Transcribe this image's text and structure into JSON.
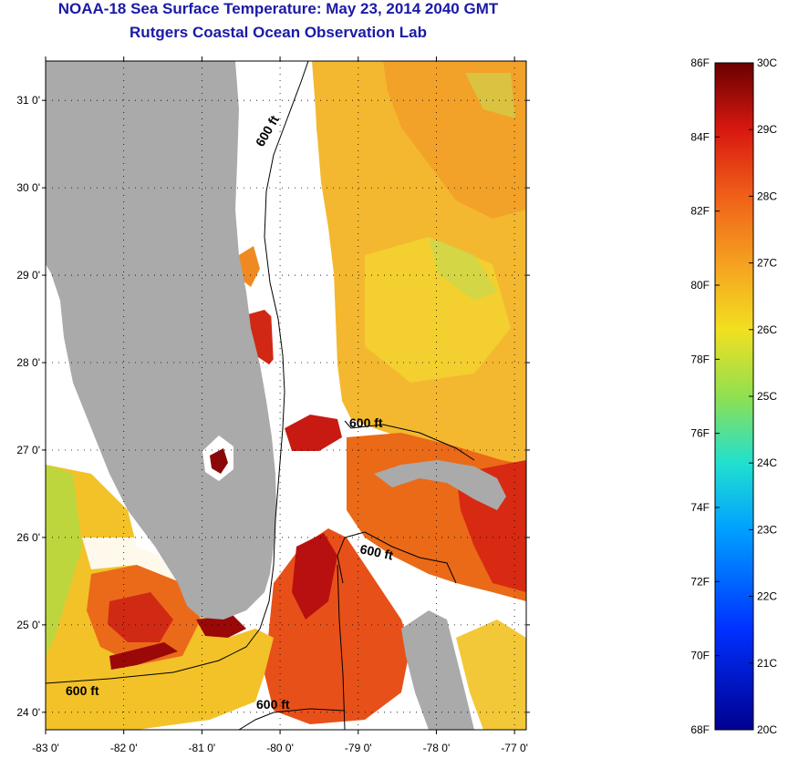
{
  "header": {
    "title": "NOAA-18 Sea Surface Temperature:  May 23, 2014 2040 GMT",
    "subtitle": "Rutgers Coastal Ocean Observation Lab"
  },
  "map": {
    "lat_labels": [
      "31 0'",
      "30 0'",
      "29 0'",
      "28 0'",
      "27 0'",
      "26 0'",
      "25 0'",
      "24 0'"
    ],
    "lon_labels": [
      "-83 0'",
      "-82 0'",
      "-81 0'",
      "-80 0'",
      "-79 0'",
      "-78 0'",
      "-77 0'"
    ],
    "lat_range": [
      23.8,
      31.45
    ],
    "lon_range": [
      -83.0,
      -76.85
    ],
    "contours": [
      "600 ft",
      "600 ft",
      "600 ft",
      "600 ft",
      "600 ft"
    ]
  },
  "colorbar": {
    "f_labels": [
      "86F",
      "84F",
      "82F",
      "80F",
      "78F",
      "76F",
      "74F",
      "72F",
      "70F",
      "68F"
    ],
    "c_labels": [
      "30C",
      "29C",
      "28C",
      "27C",
      "26C",
      "25C",
      "24C",
      "23C",
      "22C",
      "21C",
      "20C"
    ],
    "range_c": [
      20,
      30
    ]
  },
  "colors": {
    "title": "#1a1aa6",
    "land": "#aaaaaa",
    "warm_dark": "#8b0000",
    "hot": "#e02810",
    "orange": "#f08a20",
    "yellow": "#f2d21e",
    "green": "#9ed84a"
  }
}
